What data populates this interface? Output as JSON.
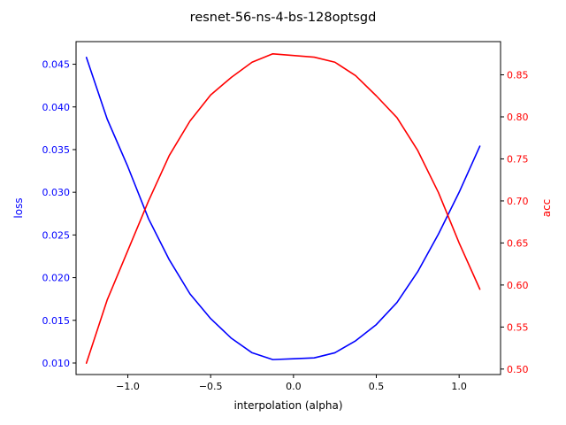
{
  "chart_data": {
    "type": "line",
    "title": "resnet-56-ns-4-bs-128optsgd",
    "xlabel": "interpolation (alpha)",
    "ylabel_left": "loss",
    "ylabel_right": "acc",
    "xlim": [
      -1.3125,
      1.25
    ],
    "ylim_left": [
      0.00865,
      0.04765
    ],
    "ylim_right": [
      0.4935,
      0.8895
    ],
    "x_ticks": [
      -1.0,
      -0.5,
      0.0,
      0.5,
      1.0
    ],
    "x_tick_labels": [
      "−1.0",
      "−0.5",
      "0.0",
      "0.5",
      "1.0"
    ],
    "y_left_ticks": [
      0.01,
      0.015,
      0.02,
      0.025,
      0.03,
      0.035,
      0.04,
      0.045
    ],
    "y_left_tick_labels": [
      "0.010",
      "0.015",
      "0.020",
      "0.025",
      "0.030",
      "0.035",
      "0.040",
      "0.045"
    ],
    "y_right_ticks": [
      0.5,
      0.55,
      0.6,
      0.65,
      0.7,
      0.75,
      0.8,
      0.85
    ],
    "y_right_tick_labels": [
      "0.50",
      "0.55",
      "0.60",
      "0.65",
      "0.70",
      "0.75",
      "0.80",
      "0.85"
    ],
    "grid": false,
    "x": [
      -1.25,
      -1.125,
      -1.0,
      -0.875,
      -0.75,
      -0.625,
      -0.5,
      -0.375,
      -0.25,
      -0.125,
      0.0,
      0.125,
      0.25,
      0.375,
      0.5,
      0.625,
      0.75,
      0.875,
      1.0,
      1.125
    ],
    "series": [
      {
        "axis": "left",
        "color": "#0000ff",
        "values": [
          0.0458,
          0.0386,
          0.033,
          0.0269,
          0.0221,
          0.0181,
          0.0152,
          0.0129,
          0.0112,
          0.0104,
          0.0105,
          0.0106,
          0.0112,
          0.0126,
          0.0145,
          0.0171,
          0.0207,
          0.0251,
          0.03,
          0.0354
        ]
      },
      {
        "axis": "right",
        "color": "#ff0000",
        "values": [
          0.507,
          0.582,
          0.641,
          0.7,
          0.754,
          0.795,
          0.826,
          0.847,
          0.865,
          0.875,
          0.873,
          0.871,
          0.865,
          0.849,
          0.825,
          0.799,
          0.76,
          0.71,
          0.65,
          0.595
        ]
      }
    ]
  }
}
